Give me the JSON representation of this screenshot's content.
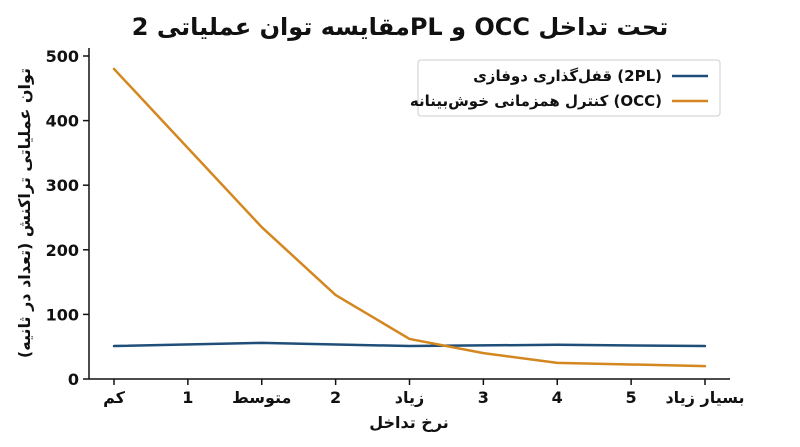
{
  "chart_data": {
    "type": "line",
    "title": "مقایسه توان عملیاتی 2PL و OCC تحت تداخل",
    "xlabel": "نرخ تداخل",
    "ylabel": "توان عملیاتی تراکنش (تعداد در ثانیه)",
    "categories": [
      "کم",
      "1",
      "متوسط",
      "2",
      "زیاد",
      "3",
      "4",
      "5",
      "بسیار زیاد"
    ],
    "x_positions": [
      0,
      1,
      2,
      3,
      4,
      5,
      6,
      7,
      8
    ],
    "ylim": [
      0,
      500
    ],
    "yticks": [
      0,
      100,
      200,
      300,
      400,
      500
    ],
    "ytick_labels": [
      "0",
      "100",
      "200",
      "300",
      "400",
      "500"
    ],
    "grid": false,
    "legend_position": "top-right",
    "series": [
      {
        "name": "قفل‌گذاری دوفازی (2PL)",
        "color": "#1f4e79",
        "x": [
          0,
          2,
          4,
          6,
          8
        ],
        "values": [
          51,
          56,
          51,
          53,
          51
        ]
      },
      {
        "name": "کنترل همزمانی خوش‌بینانه (OCC)",
        "color": "#d4861f",
        "x": [
          0,
          2,
          3,
          4,
          5,
          6,
          8
        ],
        "values": [
          480,
          235,
          130,
          62,
          40,
          25,
          20
        ]
      }
    ]
  }
}
